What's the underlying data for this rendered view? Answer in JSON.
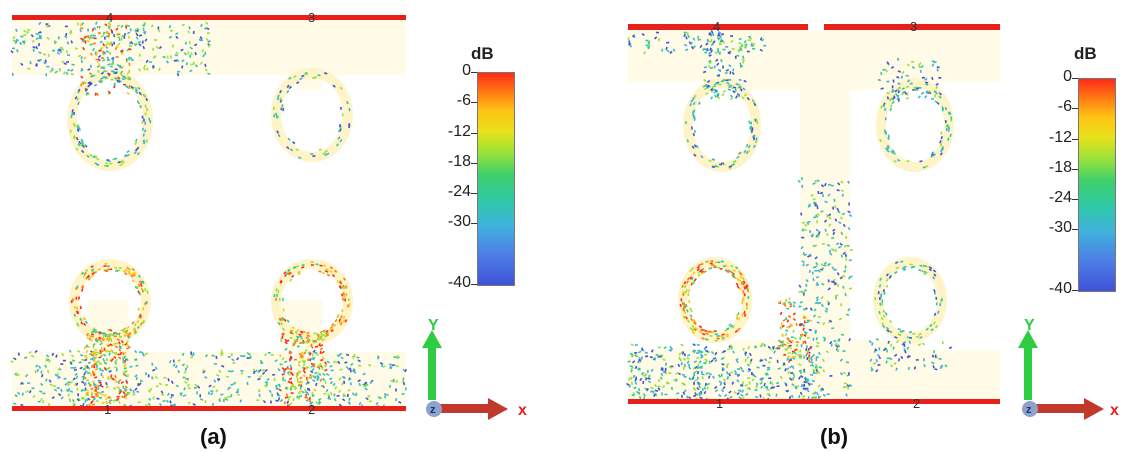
{
  "colorbar": {
    "unit": "dB",
    "ticks": [
      "0",
      "-6",
      "-12",
      "-18",
      "-24",
      "-30",
      "-40"
    ],
    "stops": [
      "#ff2a18",
      "#ff7a12",
      "#ffc414",
      "#96e13c",
      "#2fc9a6",
      "#3fb1dd",
      "#3f52d8"
    ]
  },
  "panels": [
    {
      "caption": "(a)",
      "port_labels": [
        "4",
        "3",
        "1",
        "2"
      ],
      "axis_labels": {
        "y": "Y",
        "x": "x",
        "z": "z"
      }
    },
    {
      "caption": "(b)",
      "port_labels": [
        "4",
        "3",
        "1",
        "2"
      ],
      "axis_labels": {
        "y": "Y",
        "x": "x",
        "z": "z"
      }
    }
  ],
  "colors": {
    "trace_fill": "#fffbe6",
    "port_line": "#e8201a",
    "arrow_red": "#c0392b",
    "arrow_green": "#2ecc40"
  }
}
